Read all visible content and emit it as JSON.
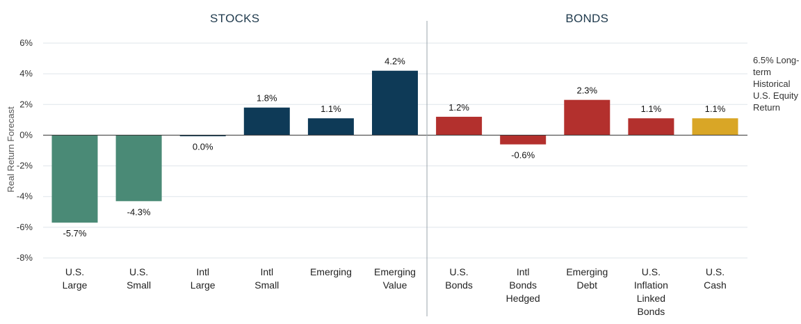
{
  "chart_data": {
    "type": "bar",
    "ylabel": "Real Return Forecast",
    "ylim": [
      -8,
      6
    ],
    "ytick_values": [
      -8,
      -6,
      -4,
      -2,
      0,
      2,
      4,
      6
    ],
    "ytick_labels": [
      "-8%",
      "-6%",
      "-4%",
      "-2%",
      "0%",
      "2%",
      "4%",
      "6%"
    ],
    "grid": true,
    "groups": [
      {
        "title": "STOCKS",
        "start": 0,
        "end": 5
      },
      {
        "title": "BONDS",
        "start": 6,
        "end": 10
      }
    ],
    "categories": [
      [
        "U.S.",
        "Large"
      ],
      [
        "U.S.",
        "Small"
      ],
      [
        "Intl",
        "Large"
      ],
      [
        "Intl",
        "Small"
      ],
      [
        "Emerging"
      ],
      [
        "Emerging",
        "Value"
      ],
      [
        "U.S.",
        "Bonds"
      ],
      [
        "Intl",
        "Bonds",
        "Hedged"
      ],
      [
        "Emerging",
        "Debt"
      ],
      [
        "U.S.",
        "Inflation",
        "Linked",
        "Bonds"
      ],
      [
        "U.S.",
        "Cash"
      ]
    ],
    "values": [
      -5.7,
      -4.3,
      -0.05,
      1.8,
      1.1,
      4.2,
      1.2,
      -0.6,
      2.3,
      1.1,
      1.1
    ],
    "value_labels": [
      "-5.7%",
      "-4.3%",
      "0.0%",
      "1.8%",
      "1.1%",
      "4.2%",
      "1.2%",
      "-0.6%",
      "2.3%",
      "1.1%",
      "1.1%"
    ],
    "colors": [
      "#4a8a76",
      "#4a8a76",
      "#0e3a57",
      "#0e3a57",
      "#0e3a57",
      "#0e3a57",
      "#b3302d",
      "#b3302d",
      "#b3302d",
      "#b3302d",
      "#d9a626"
    ],
    "annotation": [
      "6.5% Long-",
      "term",
      "Historical",
      "U.S. Equity",
      "Return"
    ]
  }
}
